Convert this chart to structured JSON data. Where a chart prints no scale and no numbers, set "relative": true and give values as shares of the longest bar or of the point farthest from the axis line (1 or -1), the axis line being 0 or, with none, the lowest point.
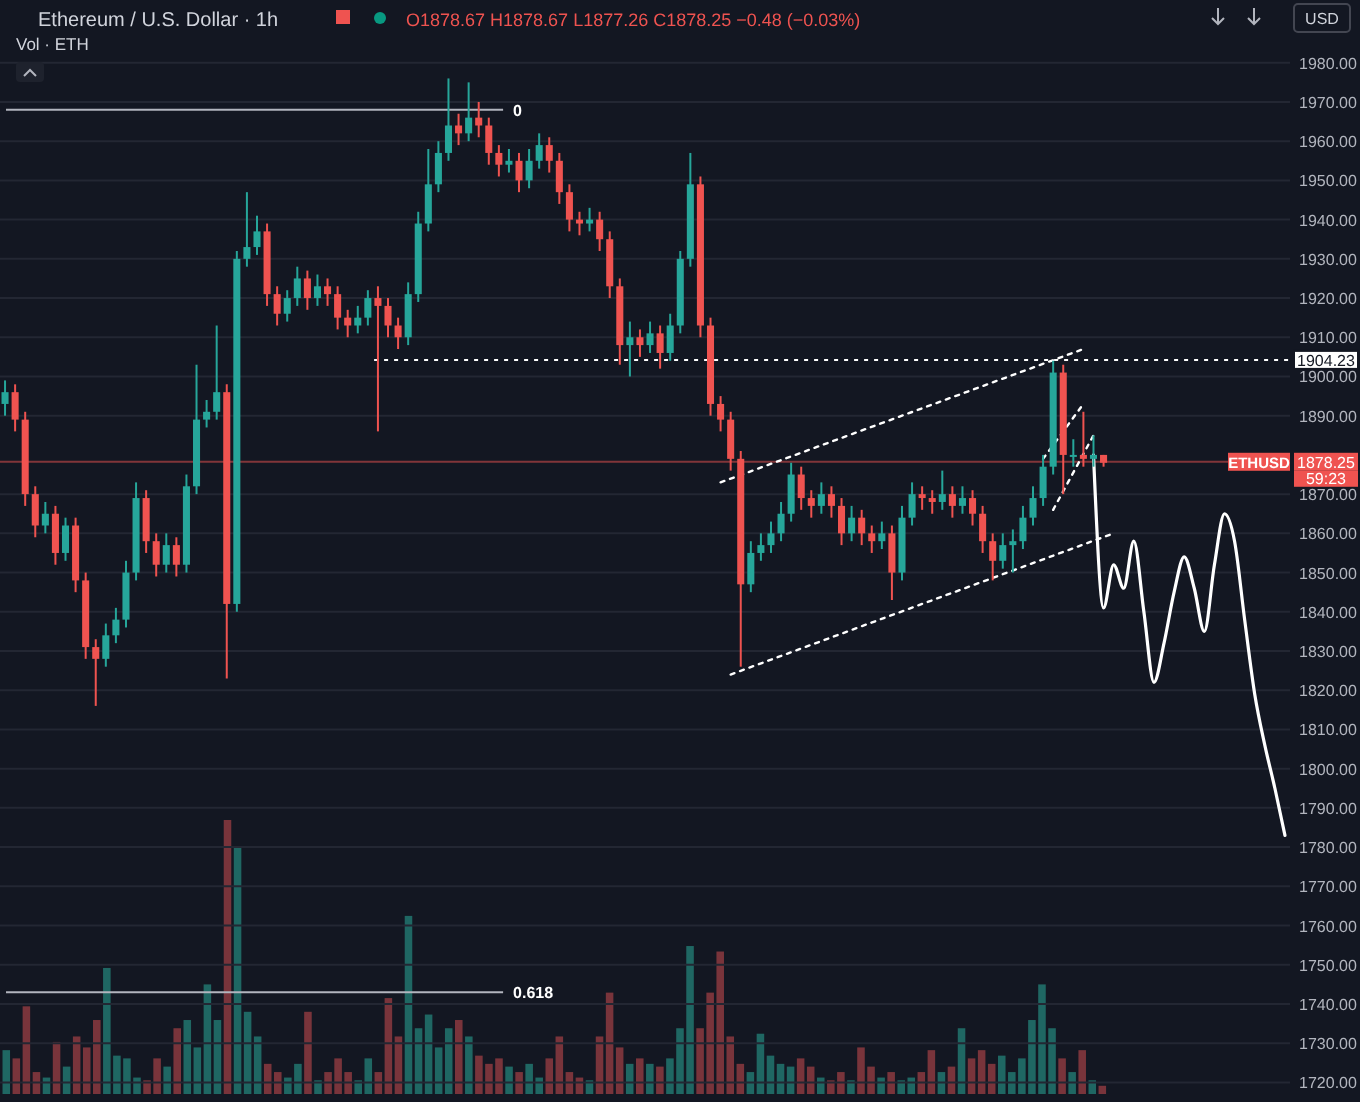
{
  "chart_data": [
    {
      "type": "candlestick",
      "title": "Ethereum / U.S. Dollar · 1h",
      "subtitle": "O1878.67 H1878.67 L1877.26 C1878.25 −0.48 (−0.03%)",
      "categories": [
        null,
        null,
        null,
        null,
        null,
        null,
        null,
        null,
        null,
        null,
        null,
        null,
        null,
        null,
        null,
        null,
        null,
        null,
        null,
        null,
        null,
        null,
        null,
        null,
        null,
        null,
        null,
        null,
        null,
        null,
        null,
        null,
        null,
        null,
        null,
        null,
        null,
        null,
        null,
        null,
        null,
        null,
        null,
        null,
        null,
        null,
        null,
        null,
        null,
        null,
        null,
        null,
        null,
        null,
        null,
        null,
        null,
        null,
        null,
        null,
        null,
        null,
        null,
        null,
        null,
        null,
        null,
        null,
        null,
        null,
        null,
        null,
        null,
        null,
        null,
        null,
        null,
        null,
        null,
        null,
        null,
        null,
        null,
        null,
        null,
        null,
        null,
        null,
        null,
        null,
        null,
        null,
        null,
        null,
        null,
        null,
        null,
        null,
        null,
        null,
        null,
        null,
        null,
        null,
        null,
        null,
        null,
        null,
        null,
        null,
        null,
        null,
        null,
        null,
        null,
        null,
        null,
        null,
        null,
        null,
        null,
        null,
        null,
        null,
        null,
        null,
        null,
        null
      ],
      "ohlc": [
        [
          1893,
          1899,
          1890,
          1896
        ],
        [
          1896,
          1898,
          1886,
          1889
        ],
        [
          1889,
          1891,
          1867,
          1870
        ],
        [
          1870,
          1872,
          1859,
          1862
        ],
        [
          1862,
          1868,
          1860,
          1865
        ],
        [
          1865,
          1867,
          1852,
          1855
        ],
        [
          1855,
          1864,
          1853,
          1862
        ],
        [
          1862,
          1864,
          1845,
          1848
        ],
        [
          1848,
          1850,
          1828,
          1831
        ],
        [
          1831,
          1833,
          1816,
          1828
        ],
        [
          1828,
          1837,
          1826,
          1834
        ],
        [
          1834,
          1841,
          1832,
          1838
        ],
        [
          1838,
          1853,
          1836,
          1850
        ],
        [
          1850,
          1873,
          1848,
          1869
        ],
        [
          1869,
          1871,
          1855,
          1858
        ],
        [
          1858,
          1860,
          1849,
          1852
        ],
        [
          1852,
          1860,
          1850,
          1857
        ],
        [
          1857,
          1859,
          1849,
          1852
        ],
        [
          1852,
          1875,
          1850,
          1872
        ],
        [
          1872,
          1903,
          1870,
          1889
        ],
        [
          1889,
          1894,
          1887,
          1891
        ],
        [
          1891,
          1913,
          1889,
          1896
        ],
        [
          1896,
          1898,
          1823,
          1842
        ],
        [
          1842,
          1932,
          1840,
          1930
        ],
        [
          1930,
          1947,
          1928,
          1933
        ],
        [
          1933,
          1941,
          1931,
          1937
        ],
        [
          1937,
          1939,
          1918,
          1921
        ],
        [
          1921,
          1923,
          1913,
          1916
        ],
        [
          1916,
          1922,
          1914,
          1920
        ],
        [
          1920,
          1928,
          1918,
          1925
        ],
        [
          1925,
          1927,
          1917,
          1920
        ],
        [
          1920,
          1926,
          1918,
          1923
        ],
        [
          1923,
          1925,
          1918,
          1921
        ],
        [
          1921,
          1923,
          1912,
          1915
        ],
        [
          1915,
          1917,
          1910,
          1913
        ],
        [
          1913,
          1918,
          1911,
          1915
        ],
        [
          1915,
          1922,
          1913,
          1920
        ],
        [
          1920,
          1923,
          1886,
          1918
        ],
        [
          1918,
          1920,
          1910,
          1913
        ],
        [
          1913,
          1915,
          1907,
          1910
        ],
        [
          1910,
          1924,
          1908,
          1921
        ],
        [
          1921,
          1942,
          1919,
          1939
        ],
        [
          1939,
          1958,
          1937,
          1949
        ],
        [
          1949,
          1960,
          1947,
          1957
        ],
        [
          1957,
          1976,
          1955,
          1964
        ],
        [
          1964,
          1967,
          1959,
          1962
        ],
        [
          1962,
          1975,
          1960,
          1966
        ],
        [
          1966,
          1970,
          1961,
          1964
        ],
        [
          1964,
          1966,
          1954,
          1957
        ],
        [
          1957,
          1959,
          1951,
          1954
        ],
        [
          1954,
          1958,
          1952,
          1955
        ],
        [
          1955,
          1957,
          1947,
          1950
        ],
        [
          1950,
          1958,
          1948,
          1955
        ],
        [
          1955,
          1962,
          1953,
          1959
        ],
        [
          1959,
          1961,
          1952,
          1955
        ],
        [
          1955,
          1957,
          1944,
          1947
        ],
        [
          1947,
          1949,
          1937,
          1940
        ],
        [
          1940,
          1942,
          1936,
          1939
        ],
        [
          1939,
          1943,
          1937,
          1940
        ],
        [
          1940,
          1942,
          1932,
          1935
        ],
        [
          1935,
          1937,
          1920,
          1923
        ],
        [
          1923,
          1925,
          1903,
          1908
        ],
        [
          1908,
          1914,
          1900,
          1910
        ],
        [
          1910,
          1912,
          1905,
          1908
        ],
        [
          1908,
          1914,
          1906,
          1911
        ],
        [
          1911,
          1913,
          1902,
          1906
        ],
        [
          1906,
          1916,
          1904,
          1913
        ],
        [
          1913,
          1932,
          1911,
          1930
        ],
        [
          1930,
          1957,
          1928,
          1949
        ],
        [
          1949,
          1951,
          1910,
          1913
        ],
        [
          1913,
          1915,
          1890,
          1893
        ],
        [
          1893,
          1895,
          1886,
          1889
        ],
        [
          1889,
          1891,
          1876,
          1879
        ],
        [
          1879,
          1881,
          1826,
          1847
        ],
        [
          1847,
          1858,
          1845,
          1855
        ],
        [
          1855,
          1860,
          1853,
          1857
        ],
        [
          1857,
          1863,
          1855,
          1860
        ],
        [
          1860,
          1868,
          1858,
          1865
        ],
        [
          1865,
          1878,
          1863,
          1875
        ],
        [
          1875,
          1877,
          1866,
          1869
        ],
        [
          1869,
          1871,
          1864,
          1867
        ],
        [
          1867,
          1873,
          1865,
          1870
        ],
        [
          1870,
          1872,
          1864,
          1867
        ],
        [
          1867,
          1869,
          1857,
          1860
        ],
        [
          1860,
          1867,
          1858,
          1864
        ],
        [
          1864,
          1866,
          1857,
          1860
        ],
        [
          1860,
          1862,
          1855,
          1858
        ],
        [
          1858,
          1863,
          1856,
          1860
        ],
        [
          1860,
          1862,
          1843,
          1850
        ],
        [
          1850,
          1867,
          1848,
          1864
        ],
        [
          1864,
          1873,
          1862,
          1870
        ],
        [
          1870,
          1872,
          1866,
          1869
        ],
        [
          1869,
          1871,
          1865,
          1868
        ],
        [
          1868,
          1876,
          1866,
          1870
        ],
        [
          1870,
          1872,
          1864,
          1867
        ],
        [
          1867,
          1872,
          1865,
          1869
        ],
        [
          1869,
          1871,
          1862,
          1865
        ],
        [
          1865,
          1867,
          1855,
          1858
        ],
        [
          1858,
          1860,
          1848,
          1853
        ],
        [
          1853,
          1860,
          1851,
          1857
        ],
        [
          1857,
          1861,
          1850,
          1858
        ],
        [
          1858,
          1867,
          1856,
          1864
        ],
        [
          1864,
          1872,
          1862,
          1869
        ],
        [
          1869,
          1880,
          1867,
          1877
        ],
        [
          1877,
          1904,
          1875,
          1901
        ],
        [
          1901,
          1903,
          1870,
          1880
        ],
        [
          1880,
          1884,
          1877,
          1880
        ],
        [
          1880,
          1891,
          1877,
          1879
        ],
        [
          1879,
          1885,
          1877,
          1880
        ],
        [
          1880,
          1880,
          1877,
          1878
        ],
        null,
        null,
        null,
        null,
        null,
        null,
        null,
        null,
        null,
        null,
        null,
        null,
        null,
        null,
        null,
        null,
        null,
        null
      ],
      "colors": [
        "#26a69a",
        "#ef5350",
        "#ef5350",
        "#ef5350",
        "#26a69a",
        "#ef5350",
        "#26a69a",
        "#ef5350",
        "#ef5350",
        "#ef5350",
        "#26a69a",
        "#26a69a",
        "#26a69a",
        "#26a69a",
        "#ef5350",
        "#ef5350",
        "#26a69a",
        "#ef5350",
        "#26a69a",
        "#26a69a",
        "#26a69a",
        "#26a69a",
        "#ef5350",
        "#26a69a",
        "#26a69a",
        "#26a69a",
        "#ef5350",
        "#ef5350",
        "#26a69a",
        "#26a69a",
        "#ef5350",
        "#26a69a",
        "#ef5350",
        "#ef5350",
        "#ef5350",
        "#26a69a",
        "#26a69a",
        "#ef5350",
        "#ef5350",
        "#ef5350",
        "#26a69a",
        "#26a69a",
        "#26a69a",
        "#26a69a",
        "#26a69a",
        "#ef5350",
        "#26a69a",
        "#ef5350",
        "#ef5350",
        "#ef5350",
        "#26a69a",
        "#ef5350",
        "#26a69a",
        "#26a69a",
        "#ef5350",
        "#ef5350",
        "#ef5350",
        "#ef5350",
        "#26a69a",
        "#ef5350",
        "#ef5350",
        "#ef5350",
        "#26a69a",
        "#ef5350",
        "#26a69a",
        "#ef5350",
        "#26a69a",
        "#26a69a",
        "#26a69a",
        "#ef5350",
        "#ef5350",
        "#ef5350",
        "#ef5350",
        "#ef5350",
        "#26a69a",
        "#26a69a",
        "#26a69a",
        "#26a69a",
        "#26a69a",
        "#ef5350",
        "#ef5350",
        "#26a69a",
        "#ef5350",
        "#ef5350",
        "#26a69a",
        "#ef5350",
        "#ef5350",
        "#26a69a",
        "#ef5350",
        "#26a69a",
        "#26a69a",
        "#ef5350",
        "#ef5350",
        "#26a69a",
        "#ef5350",
        "#26a69a",
        "#ef5350",
        "#ef5350",
        "#ef5350",
        "#26a69a",
        "#26a69a",
        "#26a69a",
        "#26a69a",
        "#26a69a",
        "#26a69a",
        "#ef5350",
        "#26a69a",
        "#ef5350",
        "#26a69a",
        "#ef5350",
        null,
        null,
        null,
        null,
        null,
        null,
        null,
        null,
        null,
        null,
        null,
        null,
        null,
        null,
        null,
        null,
        null,
        null
      ],
      "series": [
        {
          "type": "line",
          "color": "#ffffff",
          "line_style": "dotted",
          "values": [
            null,
            null,
            null,
            null,
            null,
            null,
            null,
            null,
            null,
            null,
            null,
            null,
            null,
            null,
            null,
            null,
            null,
            null,
            null,
            null,
            null,
            null,
            null,
            null,
            null,
            null,
            null,
            null,
            null,
            null,
            null,
            null,
            null,
            null,
            null,
            null,
            null,
            null,
            null,
            null,
            null,
            null,
            null,
            null,
            null,
            null,
            null,
            null,
            null,
            null,
            null,
            null,
            null,
            null,
            null,
            null,
            null,
            null,
            null,
            null,
            null,
            null,
            null,
            null,
            null,
            null,
            null,
            null,
            null,
            null,
            null,
            1873,
            null,
            null,
            null,
            null,
            null,
            null,
            null,
            null,
            null,
            null,
            null,
            null,
            null,
            null,
            null,
            null,
            null,
            null,
            null,
            null,
            null,
            null,
            null,
            null,
            null,
            null,
            null,
            null,
            null,
            null,
            null,
            null,
            null,
            null,
            null,
            1907,
            null,
            null,
            null,
            null,
            null,
            null,
            null,
            null,
            null,
            null,
            null,
            null,
            null,
            null,
            null,
            null,
            null,
            null,
            null,
            null
          ]
        },
        {
          "type": "line",
          "color": "#ffffff",
          "line_style": "dotted",
          "values": [
            null,
            null,
            null,
            null,
            null,
            null,
            null,
            null,
            null,
            null,
            null,
            null,
            null,
            null,
            null,
            null,
            null,
            null,
            null,
            null,
            null,
            null,
            null,
            null,
            null,
            null,
            null,
            null,
            null,
            null,
            null,
            null,
            null,
            null,
            null,
            null,
            null,
            null,
            null,
            null,
            null,
            null,
            null,
            null,
            null,
            null,
            null,
            null,
            null,
            null,
            null,
            null,
            null,
            null,
            null,
            null,
            null,
            null,
            null,
            null,
            null,
            null,
            null,
            null,
            null,
            null,
            null,
            null,
            null,
            null,
            null,
            null,
            1824,
            null,
            null,
            null,
            null,
            null,
            null,
            null,
            null,
            null,
            null,
            null,
            null,
            null,
            null,
            null,
            null,
            null,
            null,
            null,
            null,
            null,
            null,
            null,
            null,
            null,
            null,
            null,
            null,
            null,
            null,
            null,
            null,
            null,
            null,
            null,
            null,
            null,
            1860,
            null,
            null,
            null,
            null,
            null,
            null,
            null,
            null,
            null,
            null,
            null,
            null,
            null,
            null,
            null,
            null,
            null
          ]
        },
        {
          "type": "line",
          "color": "#ffffff",
          "line_style": "dotted",
          "values": [
            null,
            null,
            null,
            null,
            null,
            null,
            null,
            null,
            null,
            null,
            null,
            null,
            null,
            null,
            null,
            null,
            null,
            null,
            null,
            null,
            null,
            null,
            null,
            null,
            null,
            null,
            null,
            null,
            null,
            null,
            null,
            null,
            null,
            null,
            null,
            null,
            null,
            null,
            null,
            null,
            null,
            null,
            null,
            null,
            null,
            null,
            null,
            null,
            null,
            null,
            null,
            null,
            null,
            null,
            null,
            null,
            null,
            null,
            null,
            null,
            null,
            null,
            null,
            null,
            null,
            null,
            null,
            null,
            null,
            null,
            null,
            null,
            null,
            null,
            null,
            null,
            null,
            null,
            null,
            null,
            null,
            null,
            null,
            null,
            null,
            null,
            null,
            null,
            null,
            null,
            null,
            null,
            null,
            null,
            null,
            null,
            null,
            null,
            null,
            null,
            null,
            null,
            null,
            null,
            1866,
            null,
            null,
            null,
            1885,
            null,
            null,
            null,
            null,
            null,
            null,
            null,
            null,
            null,
            null,
            null,
            null,
            null,
            null,
            null,
            null,
            null,
            null,
            null
          ]
        },
        {
          "type": "line",
          "color": "#ffffff",
          "line_style": "dotted",
          "values": [
            null,
            null,
            null,
            null,
            null,
            null,
            null,
            null,
            null,
            null,
            null,
            null,
            null,
            null,
            null,
            null,
            null,
            null,
            null,
            null,
            null,
            null,
            null,
            null,
            null,
            null,
            null,
            null,
            null,
            null,
            null,
            null,
            null,
            null,
            null,
            null,
            null,
            null,
            null,
            null,
            null,
            null,
            null,
            null,
            null,
            null,
            null,
            null,
            null,
            null,
            null,
            null,
            null,
            null,
            null,
            null,
            null,
            null,
            null,
            null,
            null,
            null,
            null,
            null,
            null,
            null,
            null,
            null,
            null,
            null,
            null,
            null,
            null,
            null,
            null,
            null,
            null,
            null,
            null,
            null,
            null,
            null,
            null,
            null,
            null,
            null,
            null,
            null,
            null,
            null,
            null,
            null,
            null,
            null,
            null,
            null,
            null,
            null,
            null,
            null,
            null,
            null,
            null,
            1879,
            null,
            null,
            null,
            1893,
            null,
            null,
            null,
            null,
            null,
            null,
            null,
            null,
            null,
            null,
            null,
            null,
            null,
            null,
            null,
            null,
            null,
            null,
            null,
            null
          ]
        },
        {
          "type": "line",
          "color": "#ffffff",
          "line_style": "solid",
          "values": [
            null,
            null,
            null,
            null,
            null,
            null,
            null,
            null,
            null,
            null,
            null,
            null,
            null,
            null,
            null,
            null,
            null,
            null,
            null,
            null,
            null,
            null,
            null,
            null,
            null,
            null,
            null,
            null,
            null,
            null,
            null,
            null,
            null,
            null,
            null,
            null,
            null,
            null,
            null,
            null,
            null,
            null,
            null,
            null,
            null,
            null,
            null,
            null,
            null,
            null,
            null,
            null,
            null,
            null,
            null,
            null,
            null,
            null,
            null,
            null,
            null,
            null,
            null,
            null,
            null,
            null,
            null,
            null,
            null,
            null,
            null,
            null,
            null,
            null,
            null,
            null,
            null,
            null,
            null,
            null,
            null,
            null,
            null,
            null,
            null,
            null,
            null,
            null,
            null,
            null,
            null,
            null,
            null,
            null,
            null,
            null,
            null,
            null,
            null,
            null,
            null,
            null,
            null,
            null,
            null,
            null,
            null,
            null,
            1880,
            1841,
            1852,
            1846,
            1858,
            1840,
            1822,
            1832,
            1845,
            1854,
            1846,
            1835,
            1852,
            1865,
            1858,
            1838,
            1819,
            1806,
            1795,
            1783
          ]
        }
      ],
      "ref_lines": [
        {
          "axis": "y",
          "value": 1904.23,
          "label": "1904.23",
          "color": "#ffffff",
          "line_style": "dotted"
        },
        {
          "axis": "y",
          "value": 1878.25,
          "label": "1878.25",
          "color": "#ef5350",
          "line_style": "solid"
        },
        {
          "axis": "y",
          "value": 1968,
          "color": "#b2b5be",
          "line_style": "solid"
        },
        {
          "axis": "y",
          "value": 1743,
          "color": "#b2b5be",
          "line_style": "solid"
        }
      ],
      "annotations": [
        "Vol · ETH",
        "USD",
        "ETHUSD",
        "59:23",
        "0",
        "0.618"
      ],
      "ylim": [
        1715,
        1996
      ],
      "yticks": [
        {
          "value": 1720,
          "label": "1720.00"
        },
        {
          "value": 1730,
          "label": "1730.00"
        },
        {
          "value": 1740,
          "label": "1740.00"
        },
        {
          "value": 1750,
          "label": "1750.00"
        },
        {
          "value": 1760,
          "label": "1760.00"
        },
        {
          "value": 1770,
          "label": "1770.00"
        },
        {
          "value": 1780,
          "label": "1780.00"
        },
        {
          "value": 1790,
          "label": "1790.00"
        },
        {
          "value": 1800,
          "label": "1800.00"
        },
        {
          "value": 1810,
          "label": "1810.00"
        },
        {
          "value": 1820,
          "label": "1820.00"
        },
        {
          "value": 1830,
          "label": "1830.00"
        },
        {
          "value": 1840,
          "label": "1840.00"
        },
        {
          "value": 1850,
          "label": "1850.00"
        },
        {
          "value": 1860,
          "label": "1860.00"
        },
        {
          "value": 1870,
          "label": "1870.00"
        },
        {
          "value": 1890,
          "label": "1890.00"
        },
        {
          "value": 1900,
          "label": "1900.00"
        },
        {
          "value": 1910,
          "label": "1910.00"
        },
        {
          "value": 1920,
          "label": "1920.00"
        },
        {
          "value": 1930,
          "label": "1930.00"
        },
        {
          "value": 1940,
          "label": "1940.00"
        },
        {
          "value": 1950,
          "label": "1950.00"
        },
        {
          "value": 1960,
          "label": "1960.00"
        },
        {
          "value": 1970,
          "label": "1970.00"
        },
        {
          "value": 1980,
          "label": "1980.00"
        }
      ],
      "grid": "y",
      "tick_labels": "y"
    },
    {
      "type": "bar",
      "relative": true,
      "categories": [
        null,
        null,
        null,
        null,
        null,
        null,
        null,
        null,
        null,
        null,
        null,
        null,
        null,
        null,
        null,
        null,
        null,
        null,
        null,
        null,
        null,
        null,
        null,
        null,
        null,
        null,
        null,
        null,
        null,
        null,
        null,
        null,
        null,
        null,
        null,
        null,
        null,
        null,
        null,
        null,
        null,
        null,
        null,
        null,
        null,
        null,
        null,
        null,
        null,
        null,
        null,
        null,
        null,
        null,
        null,
        null,
        null,
        null,
        null,
        null,
        null,
        null,
        null,
        null,
        null,
        null,
        null,
        null,
        null,
        null,
        null,
        null,
        null,
        null,
        null,
        null,
        null,
        null,
        null,
        null,
        null,
        null,
        null,
        null,
        null,
        null,
        null,
        null,
        null,
        null,
        null,
        null,
        null,
        null,
        null,
        null,
        null,
        null,
        null,
        null,
        null,
        null,
        null,
        null,
        null,
        null,
        null,
        null,
        null,
        null
      ],
      "values": [
        0.16,
        0.13,
        0.32,
        0.08,
        0.06,
        0.19,
        0.1,
        0.21,
        0.17,
        0.27,
        0.46,
        0.14,
        0.13,
        0.06,
        0.05,
        0.13,
        0.1,
        0.24,
        0.27,
        0.17,
        0.4,
        0.27,
        1,
        0.9,
        0.3,
        0.21,
        0.11,
        0.08,
        0.06,
        0.11,
        0.3,
        0.05,
        0.08,
        0.13,
        0.08,
        0.05,
        0.13,
        0.08,
        0.35,
        0.21,
        0.65,
        0.24,
        0.29,
        0.17,
        0.24,
        0.27,
        0.21,
        0.14,
        0.11,
        0.13,
        0.1,
        0.08,
        0.11,
        0.06,
        0.13,
        0.21,
        0.08,
        0.06,
        0.05,
        0.21,
        0.37,
        0.17,
        0.11,
        0.13,
        0.11,
        0.1,
        0.13,
        0.24,
        0.54,
        0.24,
        0.37,
        0.52,
        0.21,
        0.11,
        0.08,
        0.22,
        0.14,
        0.11,
        0.1,
        0.13,
        0.1,
        0.06,
        0.05,
        0.08,
        0.05,
        0.17,
        0.1,
        0.06,
        0.08,
        0.05,
        0.06,
        0.08,
        0.16,
        0.08,
        0.1,
        0.24,
        0.13,
        0.16,
        0.11,
        0.14,
        0.08,
        0.13,
        0.27,
        0.4,
        0.24,
        0.13,
        0.08,
        0.16,
        0.05,
        0.03
      ],
      "colors": [
        "#22766f",
        "#8c3a3f",
        "#8c3a3f",
        "#8c3a3f",
        "#22766f",
        "#8c3a3f",
        "#22766f",
        "#8c3a3f",
        "#8c3a3f",
        "#8c3a3f",
        "#22766f",
        "#22766f",
        "#22766f",
        "#22766f",
        "#8c3a3f",
        "#8c3a3f",
        "#22766f",
        "#8c3a3f",
        "#22766f",
        "#22766f",
        "#22766f",
        "#22766f",
        "#8c3a3f",
        "#22766f",
        "#22766f",
        "#22766f",
        "#8c3a3f",
        "#8c3a3f",
        "#22766f",
        "#22766f",
        "#8c3a3f",
        "#22766f",
        "#8c3a3f",
        "#8c3a3f",
        "#8c3a3f",
        "#22766f",
        "#22766f",
        "#8c3a3f",
        "#8c3a3f",
        "#8c3a3f",
        "#22766f",
        "#22766f",
        "#22766f",
        "#22766f",
        "#22766f",
        "#8c3a3f",
        "#22766f",
        "#8c3a3f",
        "#8c3a3f",
        "#8c3a3f",
        "#22766f",
        "#8c3a3f",
        "#22766f",
        "#22766f",
        "#8c3a3f",
        "#8c3a3f",
        "#8c3a3f",
        "#8c3a3f",
        "#22766f",
        "#8c3a3f",
        "#8c3a3f",
        "#8c3a3f",
        "#22766f",
        "#8c3a3f",
        "#22766f",
        "#8c3a3f",
        "#22766f",
        "#22766f",
        "#22766f",
        "#8c3a3f",
        "#8c3a3f",
        "#8c3a3f",
        "#8c3a3f",
        "#8c3a3f",
        "#22766f",
        "#22766f",
        "#22766f",
        "#22766f",
        "#22766f",
        "#8c3a3f",
        "#8c3a3f",
        "#22766f",
        "#8c3a3f",
        "#8c3a3f",
        "#22766f",
        "#8c3a3f",
        "#8c3a3f",
        "#22766f",
        "#8c3a3f",
        "#22766f",
        "#22766f",
        "#8c3a3f",
        "#8c3a3f",
        "#22766f",
        "#8c3a3f",
        "#22766f",
        "#8c3a3f",
        "#8c3a3f",
        "#8c3a3f",
        "#22766f",
        "#22766f",
        "#22766f",
        "#22766f",
        "#22766f",
        "#22766f",
        "#8c3a3f",
        "#22766f",
        "#8c3a3f",
        "#22766f",
        "#8c3a3f"
      ]
    }
  ]
}
